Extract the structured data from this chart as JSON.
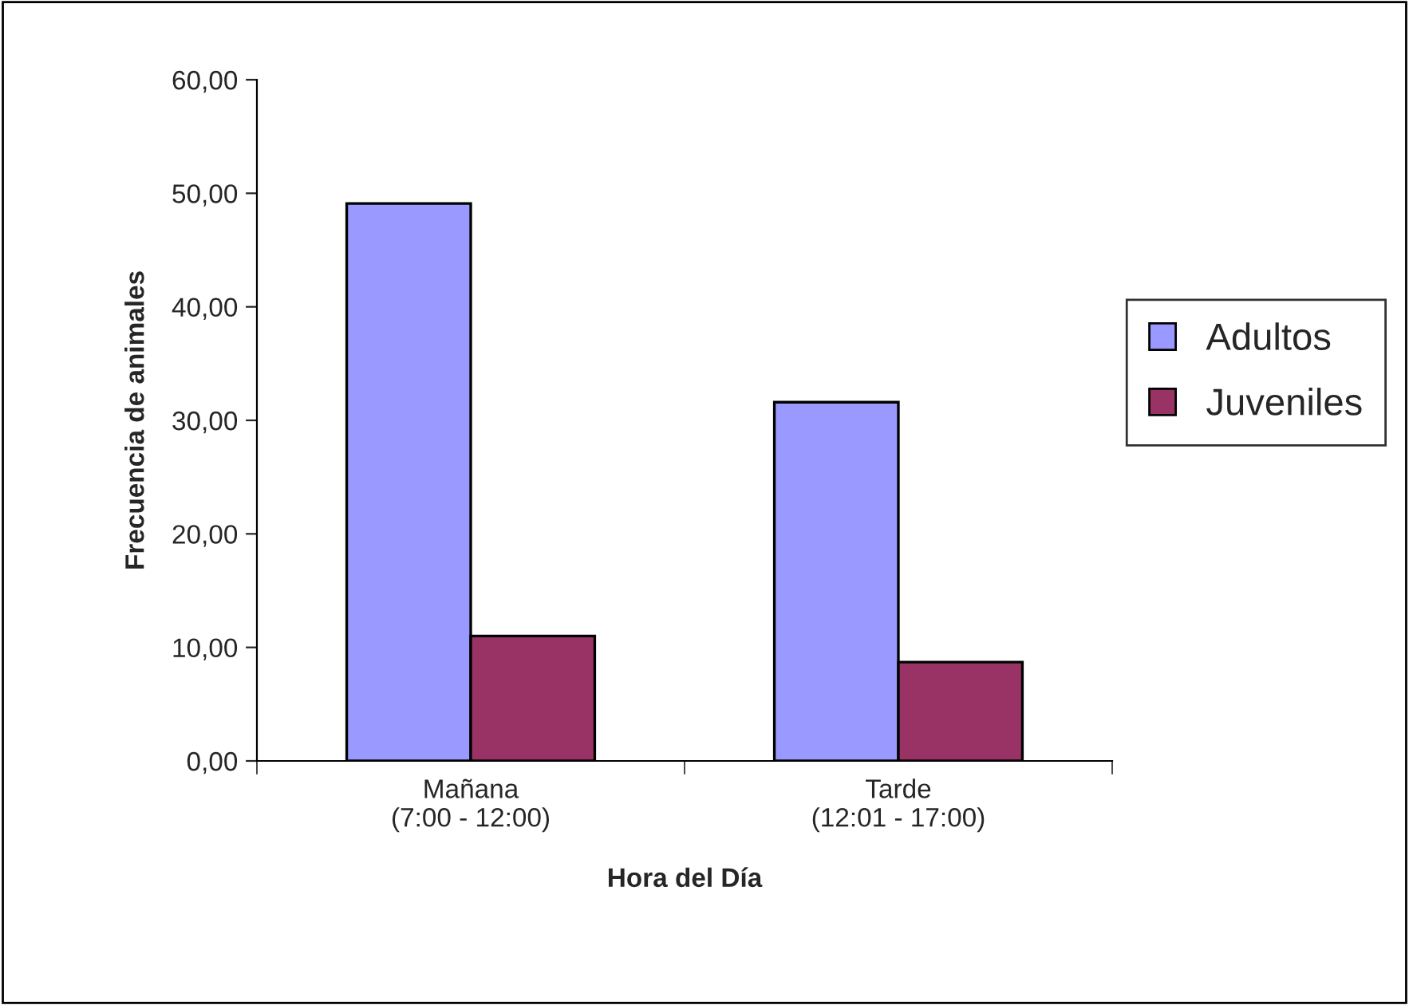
{
  "chart_data": {
    "type": "bar",
    "xlabel": "Hora del Día",
    "ylabel": "Frecuencia de animales",
    "categories": [
      "Mañana\n(7:00 - 12:00)",
      "Tarde\n(12:01 - 17:00)"
    ],
    "series": [
      {
        "name": "Adultos",
        "color": "#9999ff",
        "values": [
          49.1,
          31.6
        ]
      },
      {
        "name": "Juveniles",
        "color": "#993366",
        "values": [
          11.0,
          8.7
        ]
      }
    ],
    "ylim": [
      0,
      60
    ],
    "yticks": [
      {
        "value": 0,
        "label": "0,00"
      },
      {
        "value": 10,
        "label": "10,00"
      },
      {
        "value": 20,
        "label": "20,00"
      },
      {
        "value": 30,
        "label": "30,00"
      },
      {
        "value": 40,
        "label": "40,00"
      },
      {
        "value": 50,
        "label": "50,00"
      },
      {
        "value": 60,
        "label": "60,00"
      }
    ],
    "grid": false,
    "legend": "right"
  }
}
